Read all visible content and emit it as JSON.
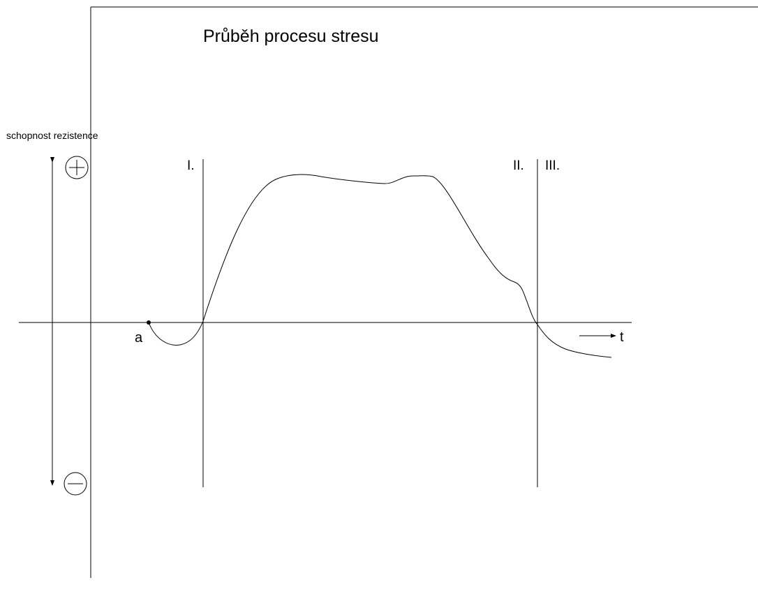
{
  "title": "Průběh procesu stresu",
  "axis_label": "schopnost rezistence",
  "phases": [
    "I.",
    "II.",
    "III."
  ],
  "point_label": "a",
  "time_label": "t"
}
